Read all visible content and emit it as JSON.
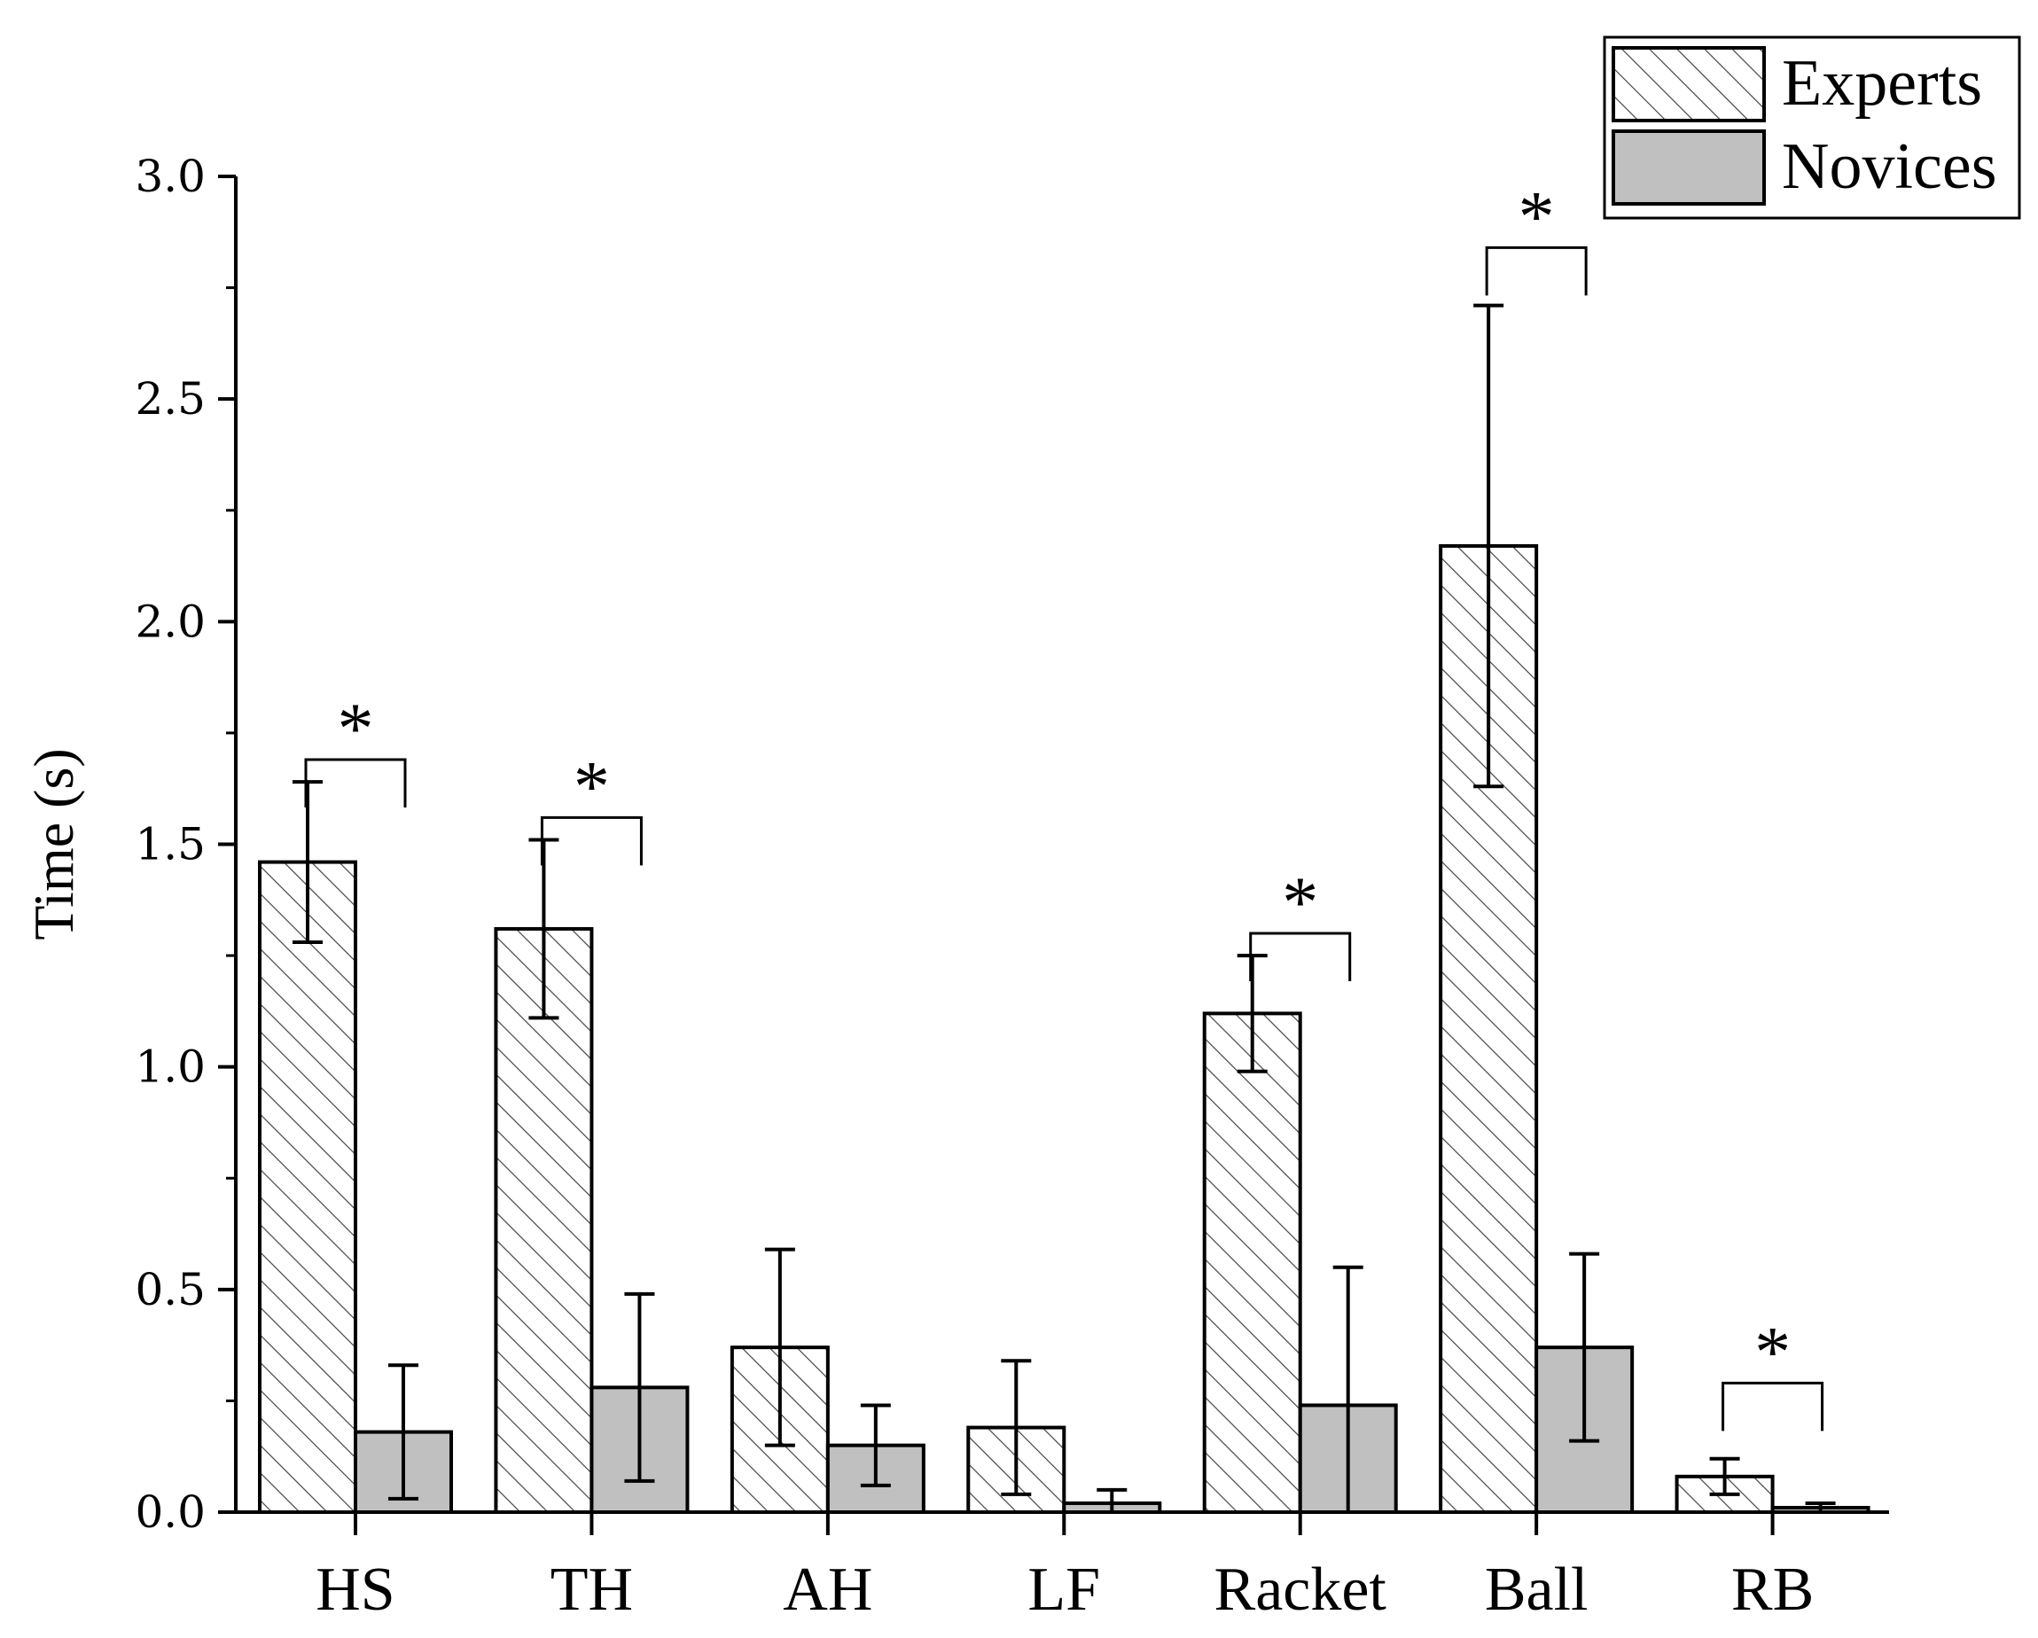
{
  "chart_data": {
    "type": "bar",
    "ylabel": "Time (s)",
    "xlabel": "",
    "ylim": [
      0,
      3.0
    ],
    "yticks": [
      "0.0",
      "0.5",
      "1.0",
      "1.5",
      "2.0",
      "2.5",
      "3.0"
    ],
    "categories": [
      "HS",
      "TH",
      "AH",
      "LF",
      "Racket",
      "Ball",
      "RB"
    ],
    "series": [
      {
        "name": "Experts",
        "pattern": "hatched",
        "color": "#ffffff",
        "values": [
          1.46,
          1.31,
          0.37,
          0.19,
          1.12,
          2.17,
          0.08
        ],
        "error": [
          0.18,
          0.2,
          0.22,
          0.15,
          0.13,
          0.54,
          0.04
        ]
      },
      {
        "name": "Novices",
        "pattern": "solid",
        "color": "#c0c0c0",
        "values": [
          0.18,
          0.28,
          0.15,
          0.02,
          0.24,
          0.37,
          0.01
        ],
        "error": [
          0.15,
          0.21,
          0.09,
          0.03,
          0.31,
          0.21,
          0.01
        ]
      }
    ],
    "significance": [
      {
        "category": "HS",
        "label": "*",
        "y": 1.69
      },
      {
        "category": "TH",
        "label": "*",
        "y": 1.56
      },
      {
        "category": "Racket",
        "label": "*",
        "y": 1.3
      },
      {
        "category": "Ball",
        "label": "*",
        "y": 2.84
      },
      {
        "category": "RB",
        "label": "*",
        "y": 0.29
      }
    ],
    "legend": "top-right"
  }
}
